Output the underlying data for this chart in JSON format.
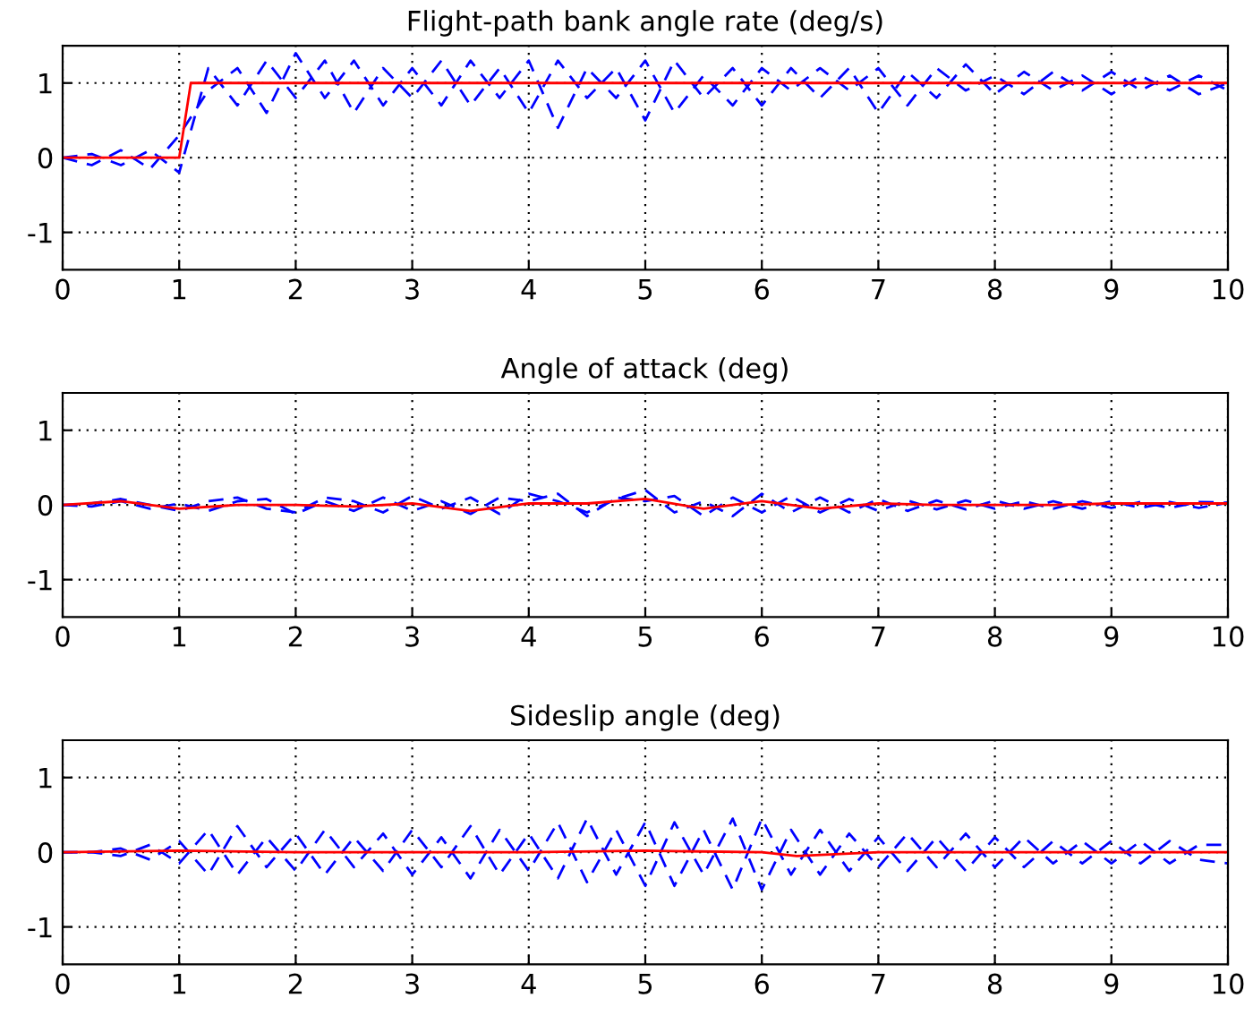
{
  "chart_data": [
    {
      "type": "line",
      "title": "Flight-path bank angle rate (deg/s)",
      "xlim": [
        0,
        10
      ],
      "xticks": [
        0,
        1,
        2,
        3,
        4,
        5,
        6,
        7,
        8,
        9,
        10
      ],
      "ylim": [
        -1.5,
        1.5
      ],
      "yticks": [
        -1,
        0,
        1
      ],
      "grid": true,
      "series": [
        {
          "color": "#0000ff",
          "line_style": "dashed",
          "x": [
            0,
            0.25,
            0.5,
            0.75,
            1,
            1.25,
            1.5,
            1.75,
            2,
            2.25,
            2.5,
            2.75,
            3,
            3.25,
            3.5,
            3.75,
            4,
            4.25,
            4.5,
            4.75,
            5,
            5.25,
            5.5,
            5.75,
            6,
            6.25,
            6.5,
            6.75,
            7,
            7.25,
            7.5,
            7.75,
            8,
            8.25,
            8.5,
            8.75,
            9,
            9.25,
            9.5,
            9.75,
            10
          ],
          "values": [
            0,
            0.05,
            -0.1,
            0.1,
            -0.2,
            1.2,
            0.7,
            1.3,
            0.8,
            1.3,
            0.6,
            1.2,
            0.8,
            1.3,
            0.7,
            1.2,
            0.6,
            1.3,
            0.8,
            1.2,
            0.5,
            1.3,
            0.8,
            1.2,
            0.7,
            1.2,
            0.8,
            1.2,
            0.6,
            1.15,
            0.8,
            1.25,
            0.85,
            1.15,
            0.9,
            1.1,
            0.85,
            1.1,
            0.9,
            1.1,
            0.9
          ]
        },
        {
          "color": "#0000ff",
          "line_style": "dashed",
          "x": [
            0,
            0.25,
            0.5,
            0.75,
            1,
            1.25,
            1.5,
            1.75,
            2,
            2.25,
            2.5,
            2.75,
            3,
            3.25,
            3.5,
            3.75,
            4,
            4.25,
            4.5,
            4.75,
            5,
            5.25,
            5.5,
            5.75,
            6,
            6.25,
            6.5,
            6.75,
            7,
            7.25,
            7.5,
            7.75,
            8,
            8.25,
            8.5,
            8.75,
            9,
            9.25,
            9.5,
            9.75,
            10
          ],
          "values": [
            0,
            -0.1,
            0.1,
            -0.15,
            0.3,
            0.9,
            1.2,
            0.6,
            1.4,
            0.8,
            1.3,
            0.7,
            1.2,
            0.7,
            1.3,
            0.8,
            1.3,
            0.4,
            1.2,
            0.8,
            1.3,
            0.6,
            1.1,
            0.7,
            1.2,
            0.9,
            1.2,
            0.9,
            1.2,
            0.7,
            1.2,
            0.9,
            1.1,
            0.85,
            1.15,
            0.9,
            1.15,
            0.9,
            1.1,
            0.85,
            1.0
          ]
        },
        {
          "color": "#ff0000",
          "line_style": "solid",
          "x": [
            0,
            1,
            1.1,
            10
          ],
          "values": [
            0,
            0,
            1,
            1
          ]
        }
      ]
    },
    {
      "type": "line",
      "title": "Angle of attack (deg)",
      "xlim": [
        0,
        10
      ],
      "xticks": [
        0,
        1,
        2,
        3,
        4,
        5,
        6,
        7,
        8,
        9,
        10
      ],
      "ylim": [
        -1.5,
        1.5
      ],
      "yticks": [
        -1,
        0,
        1
      ],
      "grid": true,
      "series": [
        {
          "color": "#0000ff",
          "line_style": "dashed",
          "x": [
            0,
            0.25,
            0.5,
            0.75,
            1,
            1.25,
            1.5,
            1.75,
            2,
            2.25,
            2.5,
            2.75,
            3,
            3.25,
            3.5,
            3.75,
            4,
            4.25,
            4.5,
            4.75,
            5,
            5.25,
            5.5,
            5.75,
            6,
            6.25,
            6.5,
            6.75,
            7,
            7.25,
            7.5,
            7.75,
            8,
            8.25,
            8.5,
            8.75,
            9,
            9.25,
            9.5,
            9.75,
            10
          ],
          "values": [
            0,
            0.02,
            0.08,
            0,
            -0.08,
            0.05,
            0.1,
            -0.05,
            -0.1,
            0.1,
            0.05,
            -0.1,
            0.12,
            -0.05,
            0.1,
            -0.12,
            0.15,
            0.05,
            -0.1,
            0.08,
            0.2,
            -0.1,
            0.05,
            -0.15,
            0.15,
            -0.1,
            0.1,
            -0.1,
            0.08,
            -0.08,
            0.06,
            -0.06,
            0.06,
            -0.05,
            0.05,
            -0.05,
            0.05,
            -0.04,
            0.04,
            -0.04,
            0.03
          ]
        },
        {
          "color": "#0000ff",
          "line_style": "dashed",
          "x": [
            0,
            0.25,
            0.5,
            0.75,
            1,
            1.25,
            1.5,
            1.75,
            2,
            2.25,
            2.5,
            2.75,
            3,
            3.25,
            3.5,
            3.75,
            4,
            4.25,
            4.5,
            4.75,
            5,
            5.25,
            5.5,
            5.75,
            6,
            6.25,
            6.5,
            6.75,
            7,
            7.25,
            7.5,
            7.75,
            8,
            8.25,
            8.5,
            8.75,
            9,
            9.25,
            9.5,
            9.75,
            10
          ],
          "values": [
            0,
            -0.02,
            0.05,
            -0.05,
            0.02,
            -0.08,
            0.05,
            0.08,
            -0.12,
            0.05,
            -0.08,
            0.1,
            -0.08,
            0.05,
            -0.12,
            0.1,
            0.05,
            0.15,
            -0.15,
            0.1,
            0.05,
            0.12,
            -0.15,
            0.1,
            -0.1,
            0.12,
            -0.1,
            0.08,
            -0.08,
            0.06,
            -0.06,
            0.06,
            -0.05,
            0.05,
            -0.05,
            0.05,
            -0.04,
            0.04,
            -0.04,
            0.04,
            0.03
          ]
        },
        {
          "color": "#ff0000",
          "line_style": "solid",
          "x": [
            0,
            0.5,
            1,
            1.5,
            2,
            2.5,
            3,
            3.5,
            4,
            4.5,
            5,
            5.5,
            6,
            6.5,
            7,
            7.5,
            8,
            8.5,
            9,
            9.5,
            10
          ],
          "values": [
            0,
            0.05,
            -0.05,
            0,
            0,
            -0.02,
            0.02,
            -0.08,
            0.02,
            0.02,
            0.08,
            -0.05,
            0.05,
            -0.05,
            0.02,
            0,
            0,
            0,
            0.02,
            0.02,
            0.02
          ]
        }
      ]
    },
    {
      "type": "line",
      "title": "Sideslip angle (deg)",
      "xlim": [
        0,
        10
      ],
      "xticks": [
        0,
        1,
        2,
        3,
        4,
        5,
        6,
        7,
        8,
        9,
        10
      ],
      "ylim": [
        -1.5,
        1.5
      ],
      "yticks": [
        -1,
        0,
        1
      ],
      "grid": true,
      "series": [
        {
          "color": "#0000ff",
          "line_style": "dashed",
          "x": [
            0,
            0.25,
            0.5,
            0.75,
            1,
            1.25,
            1.5,
            1.75,
            2,
            2.25,
            2.5,
            2.75,
            3,
            3.25,
            3.5,
            3.75,
            4,
            4.25,
            4.5,
            4.75,
            5,
            5.25,
            5.5,
            5.75,
            6,
            6.25,
            6.5,
            6.75,
            7,
            7.25,
            7.5,
            7.75,
            8,
            8.25,
            8.5,
            8.75,
            9,
            9.25,
            9.5,
            9.75,
            10
          ],
          "values": [
            0,
            0,
            0.05,
            -0.1,
            0.15,
            -0.3,
            0.35,
            -0.2,
            0.25,
            -0.3,
            0.2,
            -0.25,
            0.3,
            -0.2,
            0.35,
            -0.3,
            0.25,
            -0.35,
            0.45,
            -0.3,
            0.4,
            -0.45,
            0.3,
            -0.5,
            0.45,
            -0.3,
            0.3,
            -0.25,
            0.2,
            -0.25,
            0.2,
            -0.25,
            0.2,
            -0.2,
            0.15,
            -0.15,
            0.15,
            -0.15,
            0.15,
            -0.1,
            -0.15
          ]
        },
        {
          "color": "#0000ff",
          "line_style": "dashed",
          "x": [
            0,
            0.25,
            0.5,
            0.75,
            1,
            1.25,
            1.5,
            1.75,
            2,
            2.25,
            2.5,
            2.75,
            3,
            3.25,
            3.5,
            3.75,
            4,
            4.25,
            4.5,
            4.75,
            5,
            5.25,
            5.5,
            5.75,
            6,
            6.25,
            6.5,
            6.75,
            7,
            7.25,
            7.5,
            7.75,
            8,
            8.25,
            8.5,
            8.75,
            9,
            9.25,
            9.5,
            9.75,
            10
          ],
          "values": [
            0,
            0,
            -0.05,
            0.1,
            -0.15,
            0.3,
            -0.3,
            0.2,
            -0.25,
            0.3,
            -0.2,
            0.25,
            -0.3,
            0.2,
            -0.35,
            0.3,
            -0.25,
            0.4,
            -0.4,
            0.3,
            -0.45,
            0.4,
            -0.3,
            0.45,
            -0.5,
            0.3,
            -0.3,
            0.25,
            -0.2,
            0.25,
            -0.2,
            0.25,
            -0.2,
            0.2,
            -0.15,
            0.15,
            -0.15,
            0.15,
            -0.15,
            0.1,
            0.1
          ]
        },
        {
          "color": "#ff0000",
          "line_style": "solid",
          "x": [
            0,
            1,
            2,
            3,
            4,
            5,
            6,
            6.3,
            7,
            8,
            9,
            10
          ],
          "values": [
            0,
            0.02,
            0,
            0,
            0,
            0.02,
            0,
            -0.05,
            0,
            0,
            0,
            0
          ]
        }
      ]
    }
  ]
}
